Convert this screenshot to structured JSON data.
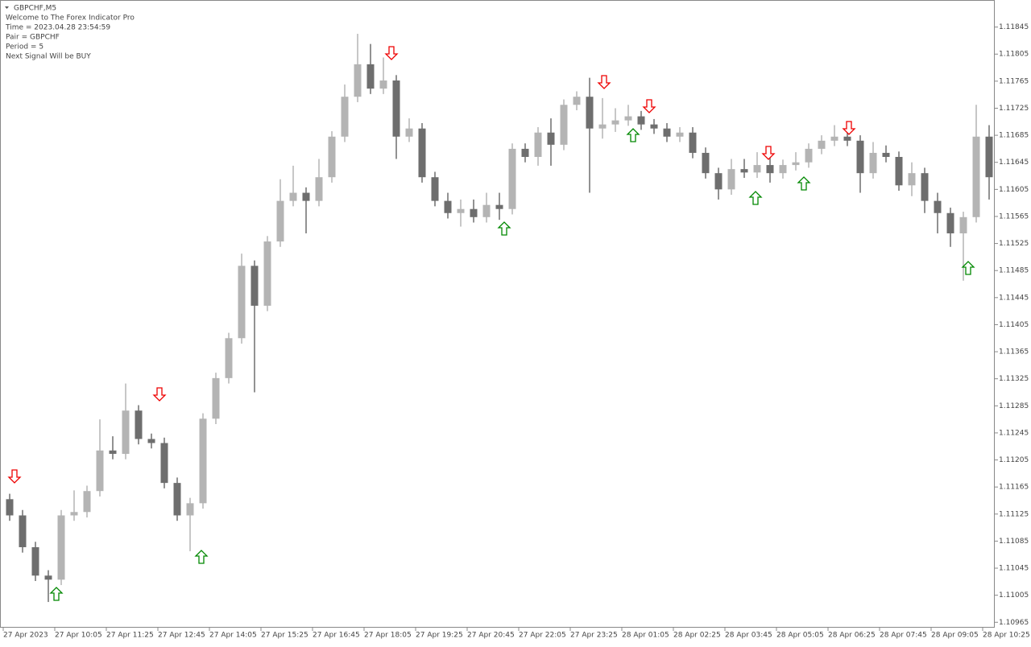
{
  "chart_data": {
    "type": "candlestick",
    "symbol_label": "GBPCHF,M5",
    "info_lines": [
      "Welcome to The Forex Indicator Pro",
      "Time = 2023.04.28 23:54:59",
      "Pair = GBPCHF",
      "Period = 5",
      "Next Signal Will be BUY"
    ],
    "up_color": "#b4b4b4",
    "down_color": "#6e6e6e",
    "ylim": [
      1.10957,
      1.11885
    ],
    "yticks": [
      1.10965,
      1.11005,
      1.11045,
      1.11085,
      1.11125,
      1.11165,
      1.11205,
      1.11245,
      1.11285,
      1.11325,
      1.11365,
      1.11405,
      1.11445,
      1.11485,
      1.11525,
      1.11565,
      1.11605,
      1.11645,
      1.11685,
      1.11725,
      1.11765,
      1.11805,
      1.11845
    ],
    "x_labels": [
      "27 Apr 2023",
      "27 Apr 10:05",
      "27 Apr 11:25",
      "27 Apr 12:45",
      "27 Apr 14:05",
      "27 Apr 15:25",
      "27 Apr 16:45",
      "27 Apr 18:05",
      "27 Apr 19:25",
      "27 Apr 20:45",
      "27 Apr 22:05",
      "27 Apr 23:25",
      "28 Apr 01:05",
      "28 Apr 02:25",
      "28 Apr 03:45",
      "28 Apr 05:05",
      "28 Apr 06:25",
      "28 Apr 07:45",
      "28 Apr 09:05",
      "28 Apr 10:25"
    ],
    "candles": [
      [
        1.11147,
        1.11155,
        1.11115,
        1.11123
      ],
      [
        1.11123,
        1.11131,
        1.11068,
        1.11076
      ],
      [
        1.11076,
        1.11084,
        1.11026,
        1.11034
      ],
      [
        1.11034,
        1.11042,
        1.10995,
        1.11028
      ],
      [
        1.11028,
        1.11131,
        1.1102,
        1.11123
      ],
      [
        1.11123,
        1.1116,
        1.11115,
        1.11128
      ],
      [
        1.11128,
        1.11167,
        1.1112,
        1.11159
      ],
      [
        1.11159,
        1.11265,
        1.11151,
        1.11219
      ],
      [
        1.11219,
        1.1124,
        1.11206,
        1.11214
      ],
      [
        1.11214,
        1.11318,
        1.11206,
        1.11278
      ],
      [
        1.11278,
        1.11286,
        1.11228,
        1.11236
      ],
      [
        1.11236,
        1.11244,
        1.11222,
        1.1123
      ],
      [
        1.1123,
        1.11238,
        1.11163,
        1.11171
      ],
      [
        1.11171,
        1.11179,
        1.11115,
        1.11123
      ],
      [
        1.11123,
        1.11149,
        1.1107,
        1.11141
      ],
      [
        1.11141,
        1.11274,
        1.11133,
        1.11266
      ],
      [
        1.11266,
        1.11334,
        1.11258,
        1.11326
      ],
      [
        1.11326,
        1.11393,
        1.11318,
        1.11385
      ],
      [
        1.11385,
        1.1151,
        1.11377,
        1.11492
      ],
      [
        1.11492,
        1.115,
        1.11305,
        1.11433
      ],
      [
        1.11433,
        1.11536,
        1.11425,
        1.11528
      ],
      [
        1.11528,
        1.1162,
        1.1152,
        1.11588
      ],
      [
        1.11588,
        1.1164,
        1.1158,
        1.116
      ],
      [
        1.116,
        1.11608,
        1.1154,
        1.11588
      ],
      [
        1.11588,
        1.1165,
        1.1158,
        1.11623
      ],
      [
        1.11623,
        1.11691,
        1.11615,
        1.11683
      ],
      [
        1.11683,
        1.1176,
        1.11675,
        1.11742
      ],
      [
        1.11742,
        1.11835,
        1.11734,
        1.1179
      ],
      [
        1.1179,
        1.1182,
        1.11746,
        1.11754
      ],
      [
        1.11754,
        1.118,
        1.11746,
        1.11766
      ],
      [
        1.11766,
        1.11774,
        1.1165,
        1.11683
      ],
      [
        1.11683,
        1.1171,
        1.11675,
        1.11695
      ],
      [
        1.11695,
        1.11703,
        1.11615,
        1.11623
      ],
      [
        1.11623,
        1.11631,
        1.1158,
        1.11588
      ],
      [
        1.11588,
        1.116,
        1.11562,
        1.1157
      ],
      [
        1.1157,
        1.1159,
        1.1155,
        1.11576
      ],
      [
        1.11576,
        1.1159,
        1.11556,
        1.11564
      ],
      [
        1.11564,
        1.116,
        1.11556,
        1.11582
      ],
      [
        1.11582,
        1.116,
        1.1156,
        1.11576
      ],
      [
        1.11576,
        1.11673,
        1.11568,
        1.11665
      ],
      [
        1.11665,
        1.11673,
        1.11645,
        1.11653
      ],
      [
        1.11653,
        1.11697,
        1.1164,
        1.11689
      ],
      [
        1.11689,
        1.1171,
        1.1164,
        1.11671
      ],
      [
        1.11671,
        1.11738,
        1.11663,
        1.1173
      ],
      [
        1.1173,
        1.1175,
        1.11722,
        1.11742
      ],
      [
        1.11742,
        1.1177,
        1.116,
        1.11695
      ],
      [
        1.11695,
        1.1174,
        1.1168,
        1.11701
      ],
      [
        1.11701,
        1.11725,
        1.1169,
        1.11707
      ],
      [
        1.11707,
        1.1173,
        1.11699,
        1.11713
      ],
      [
        1.11713,
        1.11721,
        1.11693,
        1.11701
      ],
      [
        1.11701,
        1.11709,
        1.11687,
        1.11695
      ],
      [
        1.11695,
        1.11703,
        1.11675,
        1.11683
      ],
      [
        1.11683,
        1.11697,
        1.11675,
        1.11689
      ],
      [
        1.11689,
        1.11697,
        1.11651,
        1.11659
      ],
      [
        1.11659,
        1.11667,
        1.11621,
        1.11629
      ],
      [
        1.11629,
        1.11637,
        1.1159,
        1.11605
      ],
      [
        1.11605,
        1.1165,
        1.11597,
        1.11635
      ],
      [
        1.11635,
        1.1165,
        1.11622,
        1.1163
      ],
      [
        1.1163,
        1.1166,
        1.11622,
        1.11641
      ],
      [
        1.11641,
        1.11665,
        1.11615,
        1.11629
      ],
      [
        1.11629,
        1.11649,
        1.11621,
        1.11641
      ],
      [
        1.11641,
        1.1166,
        1.11633,
        1.11645
      ],
      [
        1.11645,
        1.11673,
        1.11637,
        1.11665
      ],
      [
        1.11665,
        1.11685,
        1.11657,
        1.11677
      ],
      [
        1.11677,
        1.117,
        1.11669,
        1.11683
      ],
      [
        1.11683,
        1.11695,
        1.11669,
        1.11677
      ],
      [
        1.11677,
        1.11685,
        1.116,
        1.11629
      ],
      [
        1.11629,
        1.11675,
        1.11621,
        1.11659
      ],
      [
        1.11659,
        1.1167,
        1.11645,
        1.11653
      ],
      [
        1.11653,
        1.11661,
        1.11603,
        1.11611
      ],
      [
        1.11611,
        1.11645,
        1.11595,
        1.11629
      ],
      [
        1.11629,
        1.11637,
        1.1157,
        1.11588
      ],
      [
        1.11588,
        1.116,
        1.1154,
        1.1157
      ],
      [
        1.1157,
        1.11578,
        1.1152,
        1.1154
      ],
      [
        1.1154,
        1.11572,
        1.1147,
        1.11564
      ],
      [
        1.11564,
        1.1173,
        1.11556,
        1.11683
      ],
      [
        1.11683,
        1.117,
        1.1159,
        1.11623
      ]
    ]
  }
}
